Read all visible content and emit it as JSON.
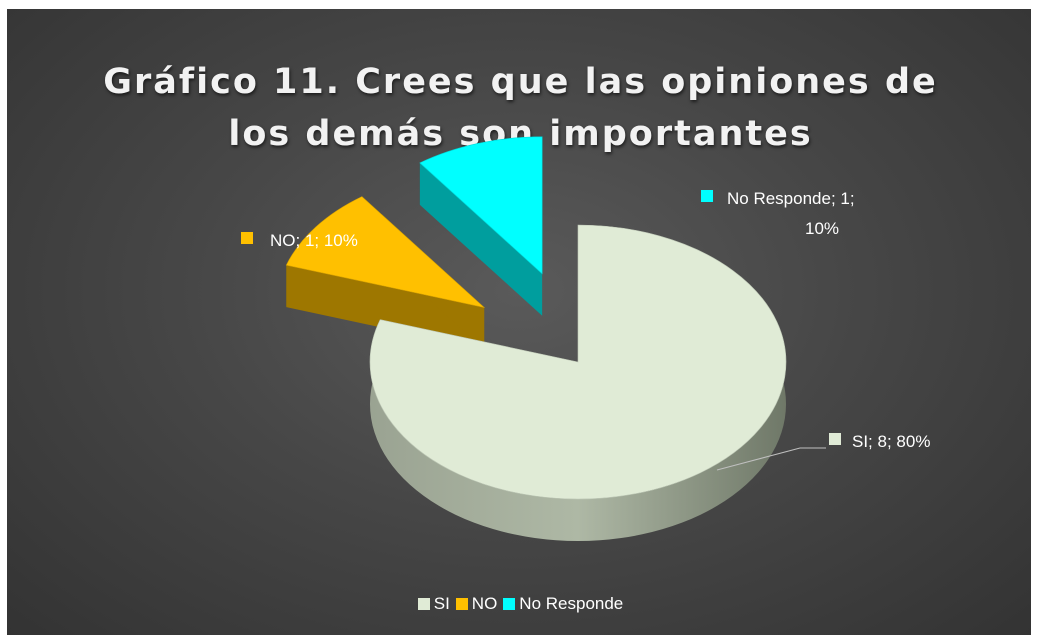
{
  "chart_data": {
    "type": "pie",
    "title_lines": [
      "Gráfico 11. Crees que las opiniones de",
      "los demás son importantes"
    ],
    "categories": [
      "SI",
      "NO",
      "No Responde"
    ],
    "values": [
      8,
      1,
      1
    ],
    "percents": [
      80,
      10,
      10
    ],
    "colors": [
      "#e0ebd6",
      "#ffc000",
      "#00ffff"
    ],
    "data_labels": [
      [
        "SI; 8; 80%"
      ],
      [
        "NO; 1; 10%"
      ],
      [
        "No Responde; 1;",
        "10%"
      ]
    ],
    "legend": {
      "position": "bottom",
      "entries": [
        "SI",
        "NO",
        "No Responde"
      ]
    },
    "style": "3D exploded pie"
  }
}
